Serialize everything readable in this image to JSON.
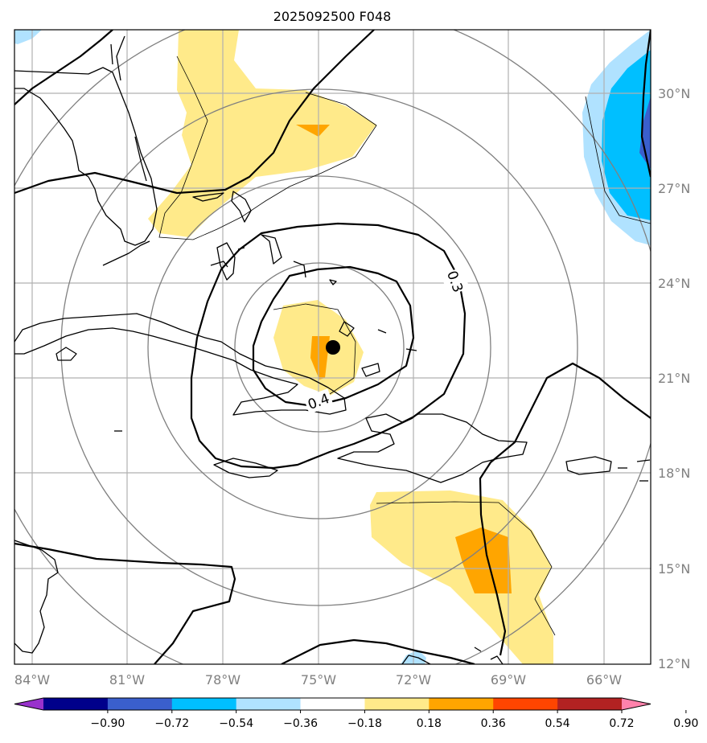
{
  "title": "2025092500 F048",
  "lat_labels": [
    "30°N",
    "27°N",
    "24°N",
    "21°N",
    "18°N",
    "15°N",
    "12°N"
  ],
  "lon_labels": [
    "84°W",
    "81°W",
    "78°W",
    "75°W",
    "72°W",
    "69°W",
    "66°W"
  ],
  "contour_labels": [
    "0.3",
    "0.4"
  ],
  "colorbar": {
    "ticks": [
      "−0.90",
      "−0.72",
      "−0.54",
      "−0.36",
      "−0.18",
      "0.18",
      "0.36",
      "0.54",
      "0.72",
      "0.90"
    ],
    "colors": [
      "#9932cc",
      "#00008b",
      "#3a5fcd",
      "#00bfff",
      "#b0e2ff",
      "#ffffff",
      "#ffea8a",
      "#ffa500",
      "#ff4500",
      "#b22222",
      "#ff82ab"
    ]
  },
  "center_marker": "storm-center"
}
